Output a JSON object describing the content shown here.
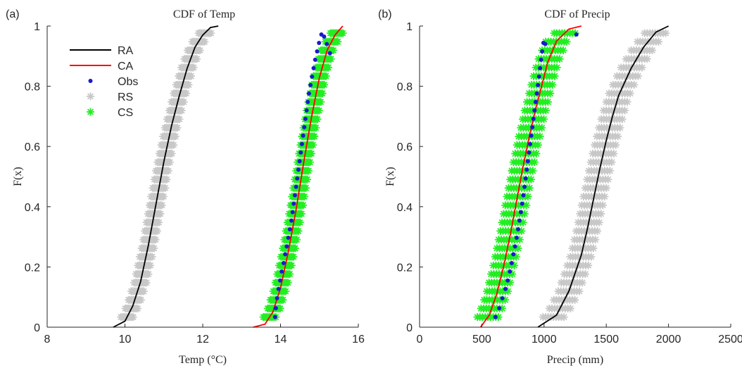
{
  "chart_data": [
    {
      "type": "line",
      "panel_label": "(a)",
      "title": "CDF of Temp",
      "xlabel": "Temp (°C)",
      "ylabel": "F(x)",
      "xlim": [
        8,
        16
      ],
      "ylim": [
        0,
        1
      ],
      "xticks": [
        8,
        10,
        12,
        14,
        16
      ],
      "yticks": [
        0,
        0.2,
        0.4,
        0.6,
        0.8,
        1
      ],
      "grid": false,
      "legend_position": "top-left",
      "legend": [
        "RA",
        "CA",
        "Obs",
        "RS",
        "CS"
      ],
      "series": [
        {
          "name": "RA",
          "kind": "line",
          "color": "#000000",
          "x": [
            9.7,
            10.0,
            10.2,
            10.4,
            10.6,
            10.8,
            11.0,
            11.2,
            11.4,
            11.6,
            11.8,
            12.0,
            12.2,
            12.4
          ],
          "y": [
            0.0,
            0.02,
            0.07,
            0.15,
            0.27,
            0.41,
            0.55,
            0.67,
            0.77,
            0.86,
            0.93,
            0.97,
            0.995,
            1.0
          ]
        },
        {
          "name": "CA",
          "kind": "line",
          "color": "#ff0000",
          "x": [
            13.3,
            13.6,
            13.8,
            14.0,
            14.2,
            14.4,
            14.6,
            14.8,
            15.0,
            15.2,
            15.4,
            15.6
          ],
          "y": [
            0.0,
            0.01,
            0.05,
            0.13,
            0.25,
            0.39,
            0.55,
            0.7,
            0.83,
            0.92,
            0.97,
            1.0
          ]
        },
        {
          "name": "Obs",
          "kind": "dots",
          "color": "#1a1acc",
          "x": [
            13.86,
            13.88,
            13.91,
            13.95,
            13.99,
            14.03,
            14.08,
            14.12,
            14.16,
            14.2,
            14.24,
            14.28,
            14.31,
            14.34,
            14.37,
            14.4,
            14.43,
            14.46,
            14.49,
            14.52,
            14.55,
            14.58,
            14.61,
            14.64,
            14.67,
            14.7,
            14.73,
            14.77,
            14.81,
            14.85,
            14.89,
            14.94,
            14.99,
            15.05,
            15.12,
            15.19,
            15.27
          ],
          "y": [
            0.034,
            0.063,
            0.096,
            0.127,
            0.155,
            0.185,
            0.213,
            0.242,
            0.268,
            0.297,
            0.325,
            0.354,
            0.382,
            0.41,
            0.438,
            0.466,
            0.494,
            0.523,
            0.551,
            0.58,
            0.608,
            0.636,
            0.664,
            0.692,
            0.72,
            0.748,
            0.776,
            0.804,
            0.832,
            0.86,
            0.888,
            0.916,
            0.944,
            0.972,
            0.965,
            0.94,
            0.91
          ]
        },
        {
          "name": "RS",
          "kind": "stars",
          "color": "#c8c8c8",
          "spread": 0.32
        },
        {
          "name": "CS",
          "kind": "stars",
          "color": "#22ee22",
          "spread": 0.32
        }
      ]
    },
    {
      "type": "line",
      "panel_label": "(b)",
      "title": "CDF of Precip",
      "xlabel": "Precip (mm)",
      "ylabel": "F(x)",
      "xlim": [
        0,
        2500
      ],
      "ylim": [
        0,
        1
      ],
      "xticks": [
        0,
        500,
        1000,
        1500,
        2000,
        2500
      ],
      "yticks": [
        0,
        0.2,
        0.4,
        0.6,
        0.8,
        1
      ],
      "grid": false,
      "series": [
        {
          "name": "RA",
          "kind": "line",
          "color": "#000000",
          "x": [
            950,
            1100,
            1200,
            1300,
            1350,
            1400,
            1450,
            1500,
            1550,
            1600,
            1700,
            1800,
            1900,
            2000
          ],
          "y": [
            0.0,
            0.04,
            0.12,
            0.24,
            0.33,
            0.43,
            0.53,
            0.62,
            0.7,
            0.77,
            0.86,
            0.93,
            0.98,
            1.0
          ]
        },
        {
          "name": "CA",
          "kind": "line",
          "color": "#ff0000",
          "x": [
            490,
            560,
            620,
            680,
            730,
            780,
            830,
            880,
            930,
            980,
            1030,
            1100,
            1200,
            1300
          ],
          "y": [
            0.0,
            0.04,
            0.11,
            0.21,
            0.31,
            0.42,
            0.53,
            0.63,
            0.72,
            0.8,
            0.88,
            0.95,
            0.99,
            1.0
          ]
        },
        {
          "name": "Obs",
          "kind": "dots",
          "color": "#1a1acc",
          "x": [
            610,
            640,
            665,
            690,
            708,
            725,
            740,
            754,
            767,
            780,
            792,
            803,
            814,
            824,
            834,
            843,
            852,
            861,
            870,
            879,
            888,
            897,
            906,
            915,
            924,
            933,
            942,
            951,
            960,
            968,
            976,
            985,
            995,
            1010,
            1260
          ],
          "y": [
            0.034,
            0.063,
            0.096,
            0.127,
            0.155,
            0.185,
            0.213,
            0.242,
            0.268,
            0.297,
            0.325,
            0.354,
            0.382,
            0.41,
            0.438,
            0.466,
            0.494,
            0.523,
            0.551,
            0.58,
            0.608,
            0.636,
            0.664,
            0.692,
            0.72,
            0.748,
            0.776,
            0.804,
            0.832,
            0.86,
            0.888,
            0.916,
            0.944,
            0.94,
            0.972
          ]
        },
        {
          "name": "RS",
          "kind": "stars",
          "color": "#c8c8c8",
          "spread": 170
        },
        {
          "name": "CS",
          "kind": "stars",
          "color": "#22ee22",
          "spread": 170
        }
      ]
    }
  ],
  "ui": {
    "colors": {
      "axis": "#262626",
      "ra": "#000000",
      "ca": "#ff0000",
      "obs": "#1a1acc",
      "rs": "#c8c8c8",
      "cs": "#22ee22"
    },
    "star_rows": 34
  }
}
